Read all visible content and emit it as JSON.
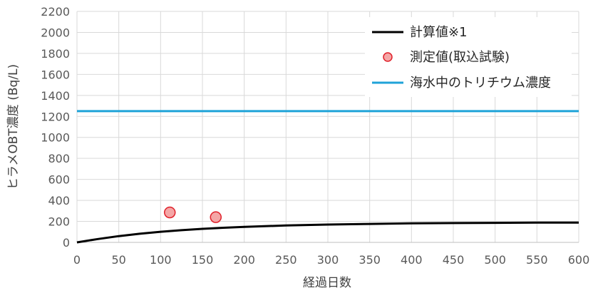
{
  "chart_data": {
    "type": "line",
    "title": "",
    "xlabel": "経過日数",
    "ylabel": "ヒラメOBT濃度 (Bq/L)",
    "xlim": [
      0,
      600
    ],
    "ylim": [
      0,
      2200
    ],
    "x_ticks": [
      0,
      50,
      100,
      150,
      200,
      250,
      300,
      350,
      400,
      450,
      500,
      550,
      600
    ],
    "y_ticks": [
      0,
      200,
      400,
      600,
      800,
      1000,
      1200,
      1400,
      1600,
      1800,
      2000,
      2200
    ],
    "grid": true,
    "legend_position": "top-right",
    "series": [
      {
        "name": "計算値※1",
        "kind": "line",
        "color": "#000000",
        "x": [
          0,
          25,
          50,
          75,
          100,
          125,
          150,
          175,
          200,
          250,
          300,
          350,
          400,
          450,
          500,
          550,
          600
        ],
        "y": [
          0,
          32,
          60,
          82,
          101,
          116,
          129,
          139,
          148,
          161,
          170,
          176,
          181,
          184,
          186,
          188,
          189
        ]
      },
      {
        "name": "測定値(取込試験)",
        "kind": "scatter",
        "color": "#f4a6a6",
        "edge_color": "#e0202a",
        "x": [
          111,
          166
        ],
        "y": [
          285,
          240
        ]
      },
      {
        "name": "海水中のトリチウム濃度",
        "kind": "hline",
        "color": "#1fa3d8",
        "x": [
          0,
          600
        ],
        "y": [
          1250,
          1250
        ]
      }
    ]
  }
}
